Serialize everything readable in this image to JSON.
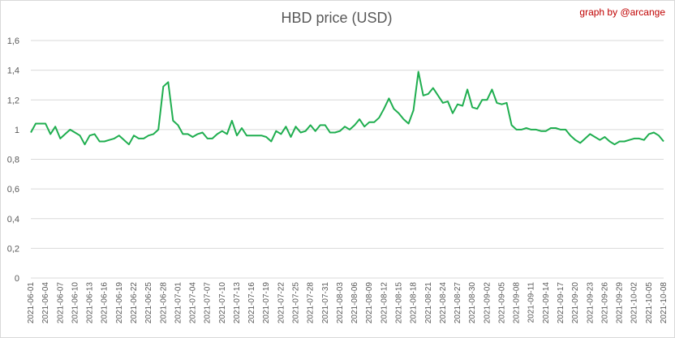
{
  "chart_data": {
    "type": "line",
    "title": "HBD price (USD)",
    "annotation": "graph by @arcange",
    "xlabel": "",
    "ylabel": "",
    "ylim": [
      0,
      1.6
    ],
    "y_ticks": [
      "0",
      "0,2",
      "0,4",
      "0,6",
      "0,8",
      "1",
      "1,2",
      "1,4",
      "1,6"
    ],
    "x_tick_labels": [
      "2021-06-01",
      "2021-06-04",
      "2021-06-07",
      "2021-06-10",
      "2021-06-13",
      "2021-06-16",
      "2021-06-19",
      "2021-06-22",
      "2021-06-25",
      "2021-06-28",
      "2021-07-01",
      "2021-07-04",
      "2021-07-07",
      "2021-07-10",
      "2021-07-13",
      "2021-07-16",
      "2021-07-19",
      "2021-07-22",
      "2021-07-25",
      "2021-07-28",
      "2021-07-31",
      "2021-08-03",
      "2021-08-06",
      "2021-08-09",
      "2021-08-12",
      "2021-08-15",
      "2021-08-18",
      "2021-08-21",
      "2021-08-24",
      "2021-08-27",
      "2021-08-30",
      "2021-09-02",
      "2021-09-05",
      "2021-09-08",
      "2021-09-11",
      "2021-09-14",
      "2021-09-17",
      "2021-09-20",
      "2021-09-23",
      "2021-09-26",
      "2021-09-29",
      "2021-10-02",
      "2021-10-05",
      "2021-10-08"
    ],
    "grid": true,
    "colors": {
      "line": "#1fae4f",
      "grid": "#d9d9d9",
      "text": "#595959",
      "credit": "#c00000"
    },
    "series": [
      {
        "x_start": "2021-06-01",
        "x_end": "2021-10-08",
        "values": [
          0.98,
          1.04,
          1.04,
          1.04,
          0.97,
          1.02,
          0.94,
          0.97,
          1.0,
          0.98,
          0.96,
          0.9,
          0.96,
          0.97,
          0.92,
          0.92,
          0.93,
          0.94,
          0.96,
          0.93,
          0.9,
          0.96,
          0.94,
          0.94,
          0.96,
          0.97,
          1.0,
          1.29,
          1.32,
          1.06,
          1.03,
          0.97,
          0.97,
          0.95,
          0.97,
          0.98,
          0.94,
          0.94,
          0.97,
          0.99,
          0.97,
          1.06,
          0.96,
          1.01,
          0.96,
          0.96,
          0.96,
          0.96,
          0.95,
          0.92,
          0.99,
          0.97,
          1.02,
          0.95,
          1.02,
          0.98,
          0.99,
          1.03,
          0.99,
          1.03,
          1.03,
          0.98,
          0.98,
          0.99,
          1.02,
          1.0,
          1.03,
          1.07,
          1.02,
          1.05,
          1.05,
          1.08,
          1.14,
          1.21,
          1.14,
          1.11,
          1.07,
          1.04,
          1.13,
          1.39,
          1.23,
          1.24,
          1.28,
          1.23,
          1.18,
          1.19,
          1.11,
          1.17,
          1.16,
          1.27,
          1.15,
          1.14,
          1.2,
          1.2,
          1.27,
          1.18,
          1.17,
          1.18,
          1.03,
          1.0,
          1.0,
          1.01,
          1.0,
          1.0,
          0.99,
          0.99,
          1.01,
          1.01,
          1.0,
          1.0,
          0.96,
          0.93,
          0.91,
          0.94,
          0.97,
          0.95,
          0.93,
          0.95,
          0.92,
          0.9,
          0.92,
          0.92,
          0.93,
          0.94,
          0.94,
          0.93,
          0.97,
          0.98,
          0.96,
          0.92
        ]
      }
    ]
  }
}
